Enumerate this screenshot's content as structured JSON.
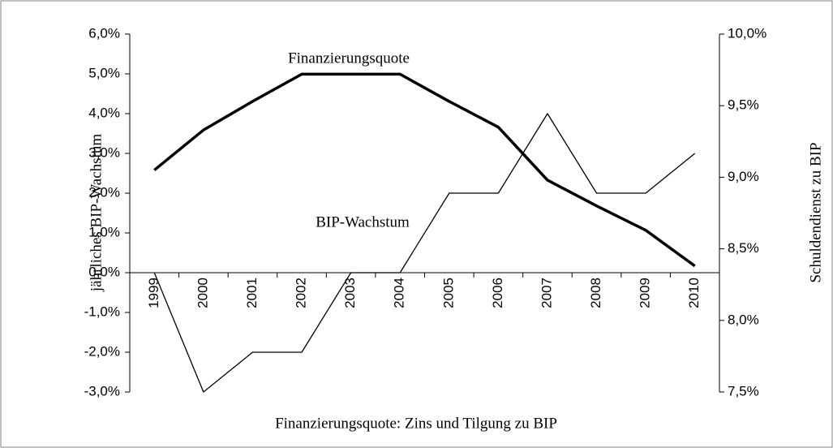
{
  "chart_data": {
    "type": "line",
    "xlabel": "Finanzierungsquote: Zins und Tilgung zu BIP",
    "ylabel": "jährliches BIP-Wachstum",
    "y2label": "Schuldendienst zu BIP",
    "categories": [
      "1999",
      "2000",
      "2001",
      "2002",
      "2003",
      "2004",
      "2005",
      "2006",
      "2007",
      "2008",
      "2009",
      "2010"
    ],
    "series": [
      {
        "name": "BIP-Wachstum",
        "color": "#000000",
        "values": [
          0,
          -3,
          -2,
          -2,
          0,
          0,
          2,
          2,
          4,
          2,
          2,
          3
        ]
      },
      {
        "name": "Finanzierungsquote",
        "color": "#000000",
        "axis": "y2",
        "values": [
          9.05,
          9.33,
          9.53,
          9.72,
          9.72,
          9.72,
          9.53,
          9.35,
          8.98,
          8.8,
          8.63,
          8.38
        ]
      }
    ],
    "ylim": [
      -3,
      6
    ],
    "yticks": [
      {
        "value": -3,
        "label": "-3,0%"
      },
      {
        "value": -2,
        "label": "-2,0%"
      },
      {
        "value": -1,
        "label": "-1,0%"
      },
      {
        "value": 0,
        "label": "0,0%"
      },
      {
        "value": 1,
        "label": "1,0%"
      },
      {
        "value": 2,
        "label": "2,0%"
      },
      {
        "value": 3,
        "label": "3,0%"
      },
      {
        "value": 4,
        "label": "4,0%"
      },
      {
        "value": 5,
        "label": "5,0%"
      },
      {
        "value": 6,
        "label": "6,0%"
      }
    ],
    "y2lim": [
      7.5,
      10
    ],
    "y2ticks": [
      {
        "value": 7.5,
        "label": "7,5%"
      },
      {
        "value": 8,
        "label": "8,0%"
      },
      {
        "value": 8.5,
        "label": "8,5%"
      },
      {
        "value": 9,
        "label": "9,0%"
      },
      {
        "value": 9.5,
        "label": "9,5%"
      },
      {
        "value": 10,
        "label": "10,0%"
      }
    ],
    "grid": false
  }
}
